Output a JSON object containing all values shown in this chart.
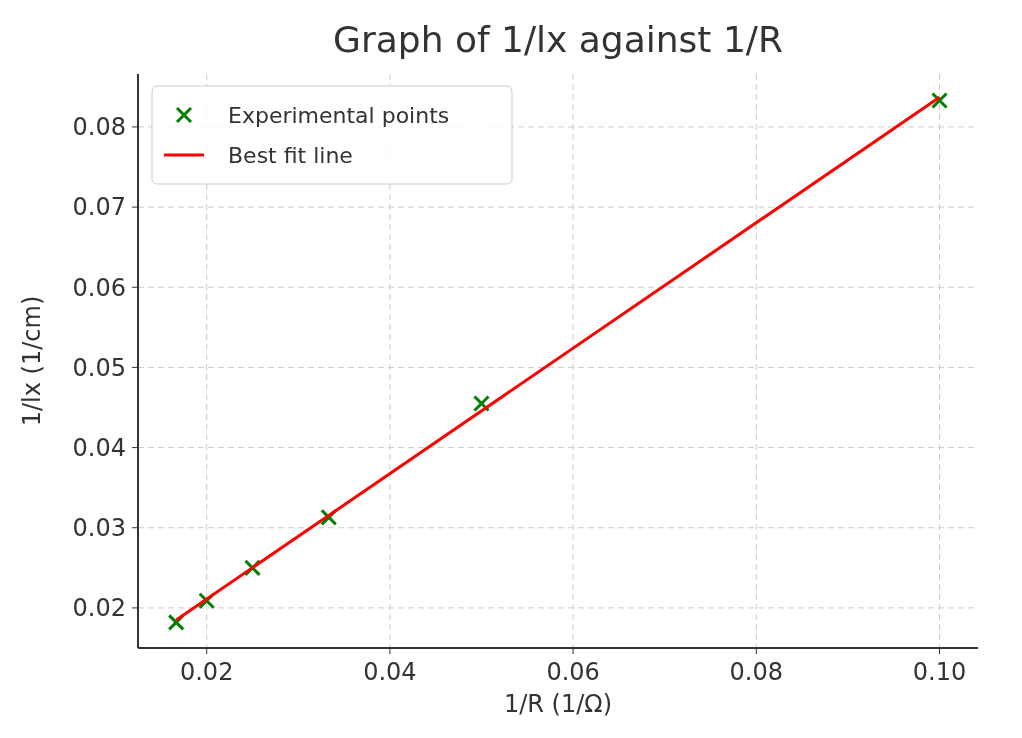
{
  "chart_data": {
    "type": "scatter",
    "title": "Graph of 1/lx against 1/R",
    "xlabel": "1/R (1/Ω)",
    "ylabel": "1/lx (1/cm)",
    "series": [
      {
        "name": "Experimental points",
        "color": "#008000",
        "marker": "cross",
        "x": [
          0.01667,
          0.02,
          0.025,
          0.03333,
          0.05,
          0.1
        ],
        "values": [
          0.0182,
          0.0209,
          0.025,
          0.0313,
          0.0455,
          0.0833
        ]
      },
      {
        "name": "Best fit line",
        "type": "line",
        "color": "#ff0000",
        "marker": "none",
        "line_style": "solid",
        "x": [
          0.01667,
          0.1
        ],
        "values": [
          0.0185,
          0.0837
        ]
      }
    ],
    "xlim": [
      0.0125,
      0.1042
    ],
    "xticks": [
      {
        "value": 0.02,
        "label": "0.02"
      },
      {
        "value": 0.04,
        "label": "0.04"
      },
      {
        "value": 0.06,
        "label": "0.06"
      },
      {
        "value": 0.08,
        "label": "0.08"
      },
      {
        "value": 0.1,
        "label": "0.10"
      }
    ],
    "ylim": [
      0.015,
      0.0866
    ],
    "yticks": [
      {
        "value": 0.02,
        "label": "0.02"
      },
      {
        "value": 0.03,
        "label": "0.03"
      },
      {
        "value": 0.04,
        "label": "0.04"
      },
      {
        "value": 0.05,
        "label": "0.05"
      },
      {
        "value": 0.06,
        "label": "0.06"
      },
      {
        "value": 0.07,
        "label": "0.07"
      },
      {
        "value": 0.08,
        "label": "0.08"
      }
    ],
    "grid": true,
    "legend": "top left"
  }
}
